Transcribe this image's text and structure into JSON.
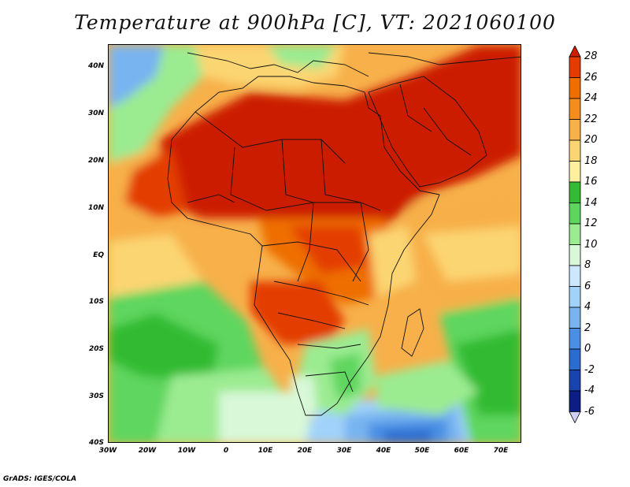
{
  "title": "Temperature at 900hPa [C], VT: 2021060100",
  "footer": "GrADS: IGES/COLA",
  "lat_labels": [
    "40N",
    "30N",
    "20N",
    "10N",
    "EQ",
    "10S",
    "20S",
    "30S",
    "40S"
  ],
  "lon_labels": [
    "30W",
    "20W",
    "10W",
    "0",
    "10E",
    "20E",
    "30E",
    "40E",
    "50E",
    "60E",
    "70E"
  ],
  "colorbar": {
    "labels": [
      "28",
      "26",
      "24",
      "22",
      "20",
      "18",
      "16",
      "14",
      "12",
      "10",
      "8",
      "6",
      "4",
      "2",
      "0",
      "-2",
      "-4",
      "-6"
    ],
    "colors": [
      "#cc1e00",
      "#e33c00",
      "#ee6e00",
      "#f48c1e",
      "#f7b04a",
      "#fbd572",
      "#fff0a0",
      "#33bb33",
      "#5ed65e",
      "#9beb91",
      "#d8f8d8",
      "#cce7ff",
      "#a0d2fa",
      "#78b4f0",
      "#4a8fe4",
      "#2a6cd0",
      "#1844b0",
      "#0c1e86",
      "#cfcff8"
    ]
  },
  "legend_colors": {
    "ocean_cool": "#9beb91",
    "ocean_mid": "#fbd572",
    "land_hot": "#cc1e00",
    "south_ocean": "#78b4f0"
  }
}
